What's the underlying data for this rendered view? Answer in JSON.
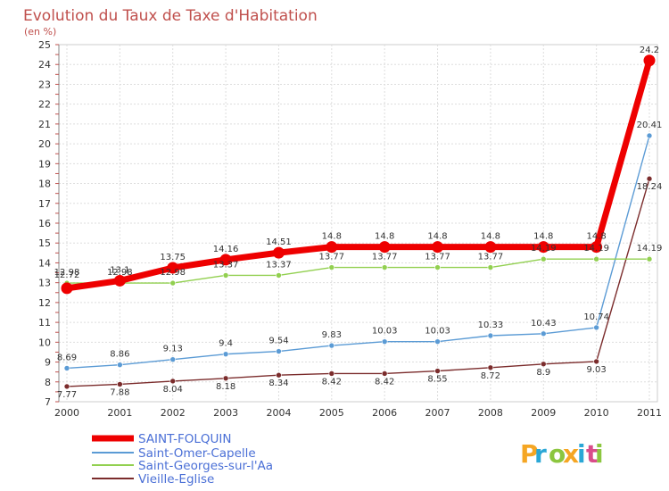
{
  "header": {
    "title": "Evolution du Taux de Taxe d'Habitation",
    "subtitle": "(en %)"
  },
  "brand": {
    "letters": [
      "P",
      "r",
      "o",
      "x",
      "i",
      "t",
      "i"
    ],
    "colors": [
      "#f5a623",
      "#2aa7d6",
      "#8cc63f",
      "#f5a623",
      "#2aa7d6",
      "#d94d8a",
      "#8cc63f"
    ]
  },
  "chart_data": {
    "type": "line",
    "title": "Evolution du Taux de Taxe d'Habitation",
    "ylabel": "(en %)",
    "xlabel": "",
    "x": [
      "2000",
      "2001",
      "2002",
      "2003",
      "2004",
      "2005",
      "2006",
      "2007",
      "2008",
      "2009",
      "2010",
      "2011"
    ],
    "ylim": [
      7,
      25
    ],
    "yticks": [
      "7",
      "8",
      "9",
      "10",
      "11",
      "12",
      "13",
      "14",
      "15",
      "16",
      "17",
      "18",
      "19",
      "20",
      "21",
      "22",
      "23",
      "24",
      "25"
    ],
    "grid": true,
    "legend_position": "bottom-left",
    "series": [
      {
        "name": "SAINT-FOLQUIN",
        "color": "#ee0000",
        "values": [
          12.72,
          13.1,
          13.75,
          14.16,
          14.51,
          14.8,
          14.8,
          14.8,
          14.8,
          14.8,
          14.8,
          24.2
        ],
        "labels": [
          "12.72",
          "13.1",
          "13.75",
          "14.16",
          "14.51",
          "14.8",
          "14.8",
          "14.8",
          "14.8",
          "14.8",
          "14.8",
          "24.2"
        ]
      },
      {
        "name": "Saint-Omer-Capelle",
        "color": "#5b9bd5",
        "values": [
          8.69,
          8.86,
          9.13,
          9.4,
          9.54,
          9.83,
          10.03,
          10.03,
          10.33,
          10.43,
          10.74,
          20.41
        ],
        "labels": [
          "8.69",
          "8.86",
          "9.13",
          "9.4",
          "9.54",
          "9.83",
          "10.03",
          "10.03",
          "10.33",
          "10.43",
          "10.74",
          "20.41"
        ]
      },
      {
        "name": "Saint-Georges-sur-l'Aa",
        "color": "#92d050",
        "values": [
          12.98,
          12.98,
          12.98,
          13.37,
          13.37,
          13.77,
          13.77,
          13.77,
          13.77,
          14.19,
          14.19,
          14.19
        ],
        "labels": [
          "12.98",
          "12.98",
          "12.98",
          "13.37",
          "13.37",
          "13.77",
          "13.77",
          "13.77",
          "13.77",
          "14.19",
          "14.19",
          "14.19"
        ]
      },
      {
        "name": "Vieille-Eglise",
        "color": "#7b2c2c",
        "values": [
          7.77,
          7.88,
          8.04,
          8.18,
          8.34,
          8.42,
          8.42,
          8.55,
          8.72,
          8.9,
          9.03,
          18.24
        ],
        "labels": [
          "7.77",
          "7.88",
          "8.04",
          "8.18",
          "8.34",
          "8.42",
          "8.42",
          "8.55",
          "8.72",
          "8.9",
          "9.03",
          "18.24"
        ]
      }
    ]
  }
}
